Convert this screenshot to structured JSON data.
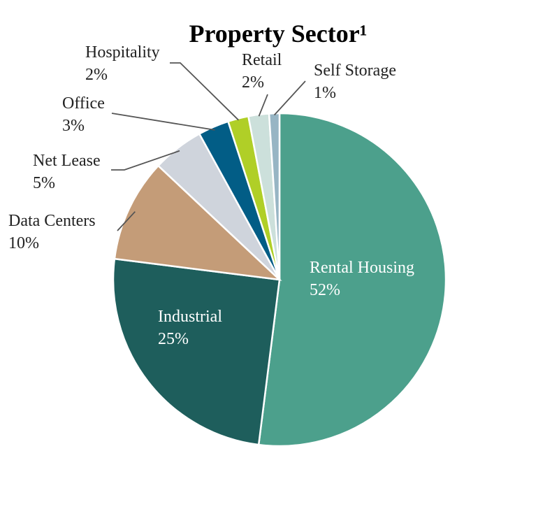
{
  "chart_data": {
    "type": "pie",
    "title": "Property Sector¹",
    "start": "12 o'clock",
    "direction": "clockwise",
    "slices": [
      {
        "name": "Rental Housing",
        "value": 52,
        "label": "52%",
        "color": "#4ca08c",
        "label_style": "inside"
      },
      {
        "name": "Industrial",
        "value": 25,
        "label": "25%",
        "color": "#1e5e5c",
        "label_style": "inside"
      },
      {
        "name": "Data Centers",
        "value": 10,
        "label": "10%",
        "color": "#c49c78",
        "label_style": "outside"
      },
      {
        "name": "Net Lease",
        "value": 5,
        "label": "5%",
        "color": "#cfd4dc",
        "label_style": "outside"
      },
      {
        "name": "Office",
        "value": 3,
        "label": "3%",
        "color": "#025d86",
        "label_style": "outside"
      },
      {
        "name": "Hospitality",
        "value": 2,
        "label": "2%",
        "color": "#b0cf27",
        "label_style": "outside"
      },
      {
        "name": "Retail",
        "value": 2,
        "label": "2%",
        "color": "#cce0db",
        "label_style": "outside"
      },
      {
        "name": "Self Storage",
        "value": 1,
        "label": "1%",
        "color": "#97b5c4",
        "label_style": "outside"
      }
    ]
  }
}
